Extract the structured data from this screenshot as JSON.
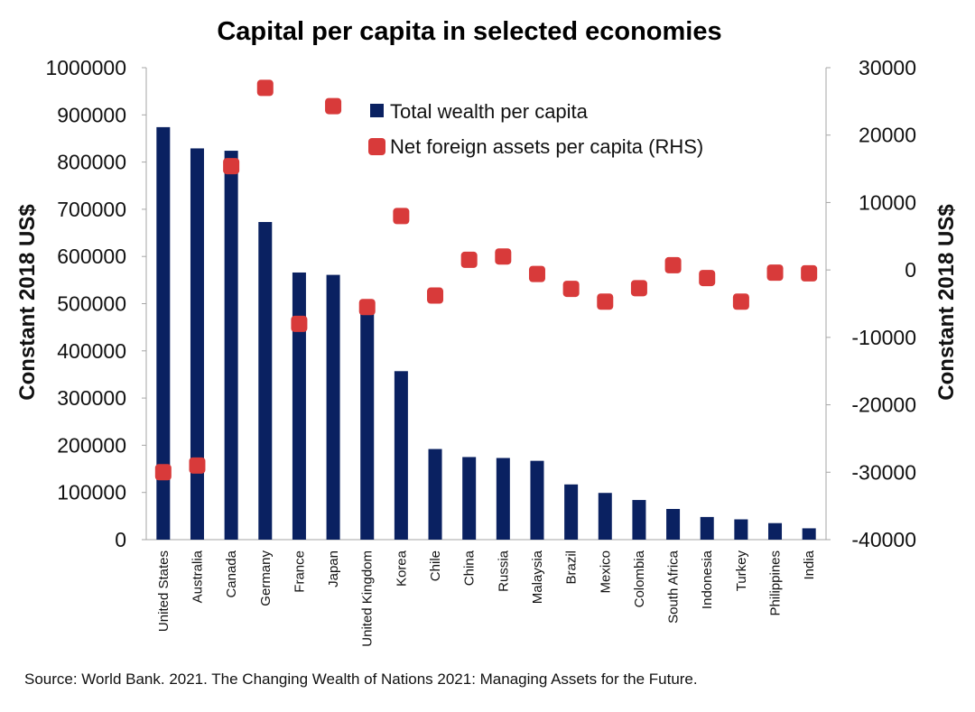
{
  "chart_data": {
    "type": "bar",
    "title": "Capital per capita in selected economies",
    "ylabel": "Constant 2018 US$",
    "y2label": "Constant 2018 US$",
    "ylim": [
      0,
      1000000
    ],
    "y2lim": [
      -40000,
      30000
    ],
    "yticks": [
      "1000000",
      "900000",
      "800000",
      "700000",
      "600000",
      "500000",
      "400000",
      "300000",
      "200000",
      "100000",
      "0"
    ],
    "y2ticks": [
      "30000",
      "20000",
      "10000",
      "0",
      "-10000",
      "-20000",
      "-30000",
      "-40000"
    ],
    "categories": [
      "United States",
      "Australia",
      "Canada",
      "Germany",
      "France",
      "Japan",
      "United Kingdom",
      "Korea",
      "Chile",
      "China",
      "Russia",
      "Malaysia",
      "Brazil",
      "Mexico",
      "Colombia",
      "South Africa",
      "Indonesia",
      "Turkey",
      "Philippines",
      "India"
    ],
    "series": [
      {
        "name": "Total wealth per capita",
        "type": "bar",
        "axis": "left",
        "color": "#0a2161",
        "values": [
          874000,
          829000,
          824000,
          673000,
          566000,
          561000,
          494000,
          357000,
          192000,
          175000,
          173000,
          167000,
          117000,
          99000,
          84000,
          65000,
          48000,
          43000,
          35000,
          24000
        ]
      },
      {
        "name": "Net foreign assets per capita (RHS)",
        "type": "scatter",
        "axis": "right",
        "color": "#d83a3a",
        "values": [
          -30000,
          -29000,
          15400,
          27000,
          -8000,
          24300,
          -5500,
          8000,
          -3800,
          1500,
          2000,
          -600,
          -2800,
          -4700,
          -2700,
          700,
          -1200,
          -4700,
          -400,
          -500
        ]
      }
    ],
    "legend_position": "top-right",
    "grid": false,
    "source": "Source: World Bank. 2021. The Changing Wealth of Nations 2021: Managing Assets for the Future."
  }
}
